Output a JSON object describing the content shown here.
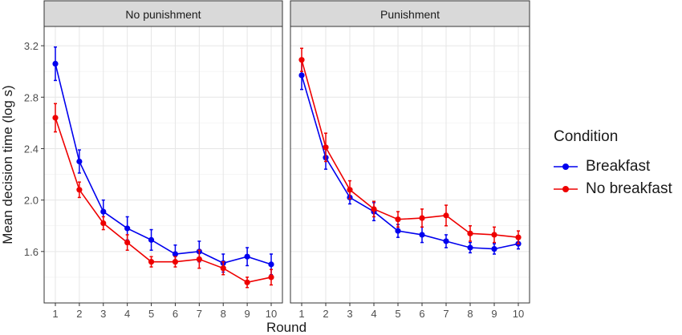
{
  "chart_data": {
    "type": "line",
    "ylabel": "Mean decision time (log s)",
    "xlabel": "Round",
    "x": [
      1,
      2,
      3,
      4,
      5,
      6,
      7,
      8,
      9,
      10
    ],
    "x_ticks": [
      "1",
      "2",
      "3",
      "4",
      "5",
      "6",
      "7",
      "8",
      "9",
      "10"
    ],
    "ylim": [
      1.2,
      3.35
    ],
    "y_ticks": [
      1.6,
      2.0,
      2.4,
      2.8,
      3.2
    ],
    "y_tick_labels": [
      "1.6",
      "2.0",
      "2.4",
      "2.8",
      "3.2"
    ],
    "grid": true,
    "legend": {
      "title": "Condition",
      "position": "right",
      "entries": [
        {
          "name": "Breakfast",
          "color": "#0000ee"
        },
        {
          "name": "No breakfast",
          "color": "#ee0000"
        }
      ]
    },
    "panels": [
      {
        "title": "No punishment",
        "series": [
          {
            "name": "Breakfast",
            "color": "#0000ee",
            "values": [
              3.06,
              2.3,
              1.91,
              1.78,
              1.69,
              1.58,
              1.6,
              1.51,
              1.56,
              1.5
            ],
            "errors": [
              0.13,
              0.09,
              0.09,
              0.09,
              0.08,
              0.07,
              0.08,
              0.07,
              0.07,
              0.08
            ]
          },
          {
            "name": "No breakfast",
            "color": "#ee0000",
            "values": [
              2.64,
              2.08,
              1.82,
              1.67,
              1.52,
              1.52,
              1.54,
              1.47,
              1.36,
              1.4
            ],
            "errors": [
              0.11,
              0.06,
              0.05,
              0.06,
              0.04,
              0.04,
              0.07,
              0.05,
              0.04,
              0.06
            ]
          }
        ]
      },
      {
        "title": "Punishment",
        "series": [
          {
            "name": "Breakfast",
            "color": "#0000ee",
            "values": [
              2.97,
              2.33,
              2.02,
              1.91,
              1.76,
              1.73,
              1.68,
              1.63,
              1.62,
              1.66
            ],
            "errors": [
              0.11,
              0.09,
              0.05,
              0.07,
              0.05,
              0.06,
              0.05,
              0.04,
              0.04,
              0.04
            ]
          },
          {
            "name": "No breakfast",
            "color": "#ee0000",
            "values": [
              3.09,
              2.41,
              2.08,
              1.93,
              1.85,
              1.86,
              1.88,
              1.74,
              1.73,
              1.71
            ],
            "errors": [
              0.09,
              0.11,
              0.07,
              0.06,
              0.06,
              0.07,
              0.08,
              0.06,
              0.06,
              0.05
            ]
          }
        ]
      }
    ]
  }
}
